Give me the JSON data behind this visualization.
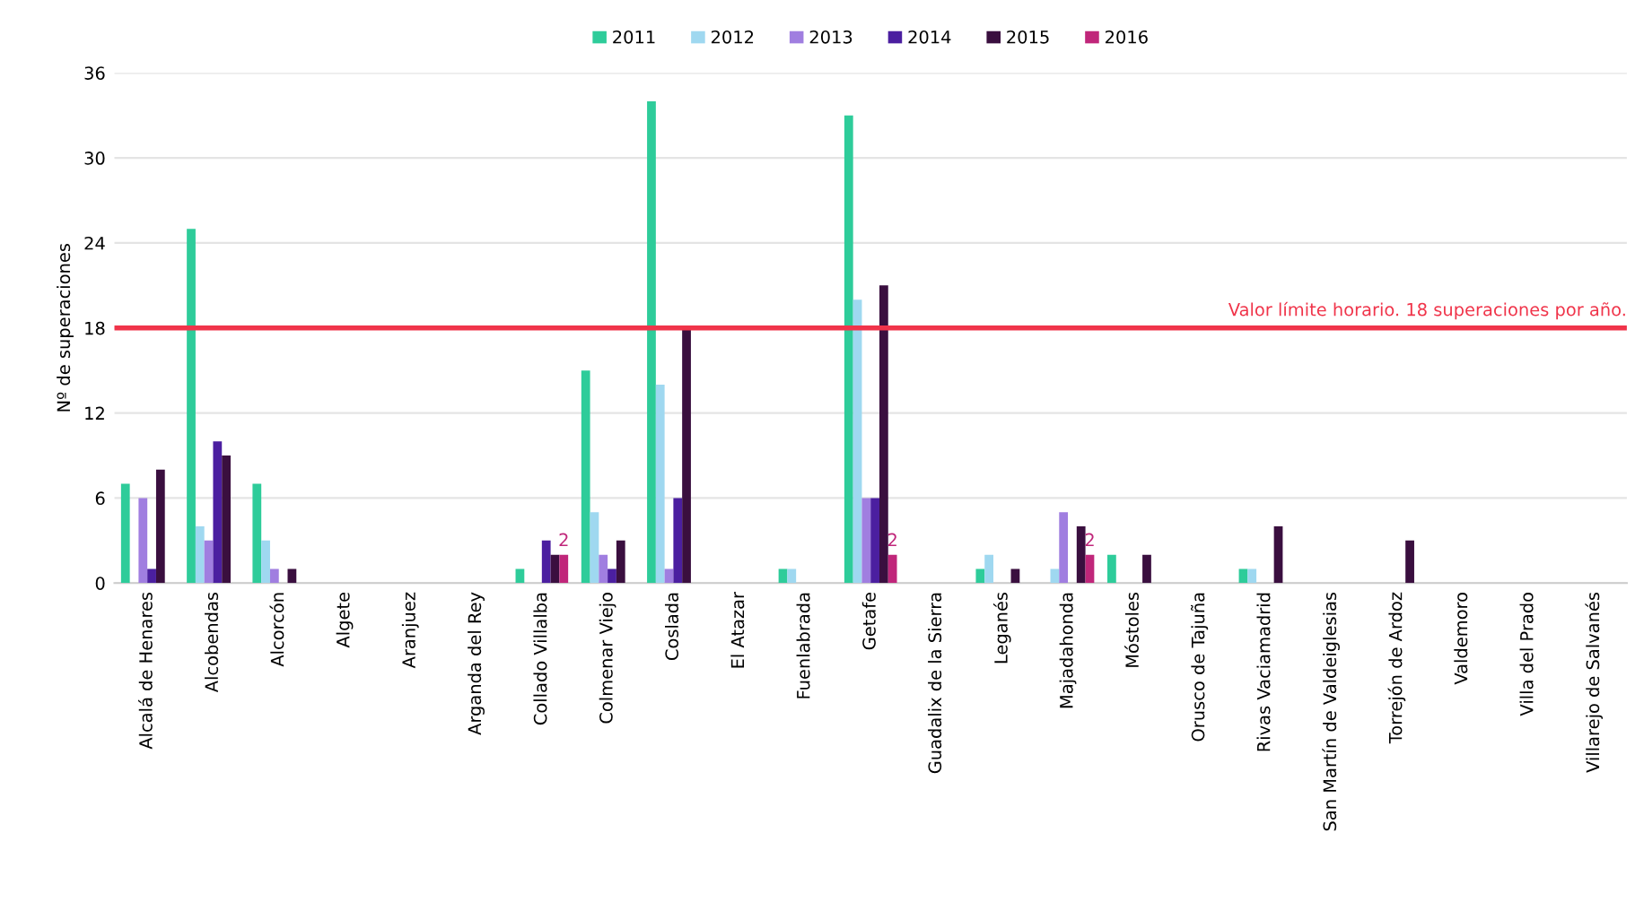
{
  "chart_data": {
    "type": "bar",
    "ylabel": "Nº de superaciones",
    "categories": [
      "Alcalá de Henares",
      "Alcobendas",
      "Alcorcón",
      "Algete",
      "Aranjuez",
      "Arganda del Rey",
      "Collado Villalba",
      "Colmenar Viejo",
      "Coslada",
      "El Atazar",
      "Fuenlabrada",
      "Getafe",
      "Guadalix de la Sierra",
      "Leganés",
      "Majadahonda",
      "Móstoles",
      "Orusco de Tajuña",
      "Rivas Vaciamadrid",
      "San Martín de Valdeiglesias",
      "Torrejón de Ardoz",
      "Valdemoro",
      "Villa del Prado",
      "Villarejo de Salvanés"
    ],
    "series": [
      {
        "name": "2011",
        "color": "#2ecc9a",
        "values": [
          7,
          25,
          7,
          0,
          0,
          0,
          1,
          15,
          34,
          0,
          1,
          33,
          0,
          1,
          0,
          2,
          0,
          1,
          0,
          0,
          0,
          0,
          0
        ]
      },
      {
        "name": "2012",
        "color": "#9fd8f0",
        "values": [
          0,
          4,
          3,
          0,
          0,
          0,
          0,
          5,
          14,
          0,
          1,
          20,
          0,
          2,
          1,
          0,
          0,
          1,
          0,
          0,
          0,
          0,
          0
        ]
      },
      {
        "name": "2013",
        "color": "#a07ee0",
        "values": [
          6,
          3,
          1,
          0,
          0,
          0,
          0,
          2,
          1,
          0,
          0,
          6,
          0,
          0,
          5,
          0,
          0,
          0,
          0,
          0,
          0,
          0,
          0
        ]
      },
      {
        "name": "2014",
        "color": "#4b1fa0",
        "values": [
          1,
          10,
          0,
          0,
          0,
          0,
          3,
          1,
          6,
          0,
          0,
          6,
          0,
          0,
          0,
          0,
          0,
          0,
          0,
          0,
          0,
          0,
          0
        ]
      },
      {
        "name": "2015",
        "color": "#3a0f3f",
        "values": [
          8,
          9,
          1,
          0,
          0,
          0,
          2,
          3,
          18,
          0,
          0,
          21,
          0,
          1,
          4,
          2,
          0,
          4,
          0,
          3,
          0,
          0,
          0
        ]
      },
      {
        "name": "2016",
        "color": "#c0267a",
        "values": [
          0,
          0,
          0,
          0,
          0,
          0,
          2,
          0,
          0,
          0,
          0,
          2,
          0,
          0,
          2,
          0,
          0,
          0,
          0,
          0,
          0,
          0,
          0
        ],
        "value_labels": [
          null,
          null,
          null,
          null,
          null,
          null,
          "2",
          null,
          null,
          null,
          null,
          "2",
          null,
          null,
          "2",
          null,
          null,
          null,
          null,
          null,
          null,
          null,
          null
        ]
      }
    ],
    "ylim": [
      0,
      36
    ],
    "yticks": [
      0,
      6,
      12,
      18,
      24,
      30,
      36
    ],
    "ref_lines": [
      {
        "axis": "y",
        "value": 18,
        "label": "Valor límite horario. 18 superaciones por año.",
        "color": "#f0344a"
      }
    ],
    "grid": "y",
    "legend": "top"
  }
}
